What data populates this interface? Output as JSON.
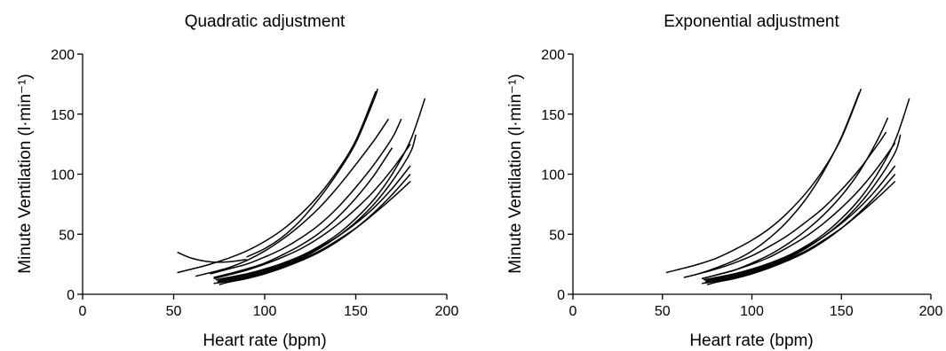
{
  "chart_data": [
    {
      "type": "line",
      "title": "Quadratic adjustment",
      "xlabel": "Heart rate (bpm)",
      "ylabel": "Minute  Ventilation  (l·min⁻¹)",
      "xlim": [
        0,
        200
      ],
      "ylim": [
        0,
        200
      ],
      "xticks": [
        0,
        50,
        100,
        150,
        200
      ],
      "yticks": [
        0,
        50,
        100,
        150,
        200
      ],
      "series": [
        {
          "x": [
            52,
            60,
            70,
            80,
            90
          ],
          "y": [
            35,
            30,
            27,
            27,
            29
          ]
        },
        {
          "x": [
            90,
            100,
            110,
            120,
            130,
            140,
            150,
            160,
            162
          ],
          "y": [
            31,
            38,
            48,
            62,
            80,
            101,
            126,
            162,
            171
          ]
        },
        {
          "x": [
            52,
            60,
            70,
            80,
            90,
            100,
            110,
            120,
            130,
            140,
            150,
            161
          ],
          "y": [
            18,
            21,
            25,
            30,
            36,
            44,
            54,
            67,
            83,
            103,
            128,
            169
          ]
        },
        {
          "x": [
            62,
            70,
            80,
            90,
            100,
            110,
            120,
            130,
            140,
            150,
            160,
            168
          ],
          "y": [
            15,
            18,
            22,
            28,
            36,
            46,
            58,
            72,
            89,
            108,
            128,
            146
          ]
        },
        {
          "x": [
            70,
            80,
            90,
            100,
            110,
            120,
            130,
            140,
            150,
            160,
            170,
            175
          ],
          "y": [
            17,
            21,
            25,
            31,
            38,
            47,
            58,
            72,
            89,
            108,
            130,
            146
          ]
        },
        {
          "x": [
            72,
            80,
            90,
            100,
            110,
            120,
            130,
            140,
            150,
            160,
            170
          ],
          "y": [
            14,
            17,
            21,
            26,
            33,
            41,
            51,
            64,
            80,
            99,
            122
          ]
        },
        {
          "x": [
            72,
            80,
            90,
            100,
            110,
            120,
            130,
            140,
            150,
            160,
            170,
            180
          ],
          "y": [
            13,
            16,
            20,
            25,
            31,
            38,
            47,
            58,
            71,
            86,
            104,
            125
          ]
        },
        {
          "x": [
            73,
            80,
            90,
            100,
            110,
            120,
            130,
            140,
            150,
            160,
            170,
            180,
            188
          ],
          "y": [
            12,
            14,
            17,
            21,
            26,
            32,
            40,
            50,
            63,
            79,
            100,
            128,
            163
          ]
        },
        {
          "x": [
            74,
            80,
            90,
            100,
            110,
            120,
            130,
            140,
            150,
            160,
            170,
            180,
            183
          ],
          "y": [
            10,
            12,
            15,
            19,
            24,
            30,
            38,
            48,
            60,
            75,
            94,
            118,
            133
          ]
        },
        {
          "x": [
            74,
            80,
            90,
            100,
            110,
            120,
            130,
            140,
            150,
            160,
            170,
            180
          ],
          "y": [
            11,
            13,
            16,
            20,
            25,
            31,
            39,
            48,
            59,
            72,
            88,
            107
          ]
        },
        {
          "x": [
            75,
            80,
            90,
            100,
            110,
            120,
            130,
            140,
            150,
            160,
            170,
            180
          ],
          "y": [
            8,
            10,
            13,
            17,
            22,
            28,
            35,
            44,
            55,
            68,
            83,
            100
          ]
        },
        {
          "x": [
            72,
            80,
            90,
            100,
            110,
            120,
            130,
            140,
            150,
            160,
            170,
            180
          ],
          "y": [
            9,
            11,
            14,
            18,
            23,
            29,
            36,
            45,
            55,
            67,
            80,
            94
          ]
        }
      ]
    },
    {
      "type": "line",
      "title": "Exponential adjustment",
      "xlabel": "Heart rate (bpm)",
      "ylabel": "Minute  Ventilation  (l·min⁻¹)",
      "xlim": [
        0,
        200
      ],
      "ylim": [
        0,
        200
      ],
      "xticks": [
        0,
        50,
        100,
        150,
        200
      ],
      "yticks": [
        0,
        50,
        100,
        150,
        200
      ],
      "series": [
        {
          "x": [
            52,
            60,
            70,
            80,
            90,
            100,
            110,
            120,
            130,
            140,
            150,
            161
          ],
          "y": [
            18,
            21,
            25,
            30,
            37,
            45,
            55,
            68,
            84,
            104,
            130,
            171
          ]
        },
        {
          "x": [
            62,
            70,
            80,
            90,
            100,
            110,
            120,
            130,
            140,
            150,
            160
          ],
          "y": [
            14,
            17,
            22,
            28,
            36,
            47,
            61,
            79,
            102,
            131,
            168
          ]
        },
        {
          "x": [
            70,
            80,
            90,
            100,
            110,
            120,
            130,
            140,
            150,
            160,
            170,
            175
          ],
          "y": [
            17,
            21,
            26,
            32,
            40,
            49,
            60,
            72,
            87,
            104,
            124,
            135
          ]
        },
        {
          "x": [
            72,
            80,
            90,
            100,
            110,
            120,
            130,
            140,
            150,
            160,
            170,
            176
          ],
          "y": [
            13,
            16,
            20,
            26,
            33,
            42,
            53,
            66,
            82,
            102,
            128,
            147
          ]
        },
        {
          "x": [
            72,
            80,
            90,
            100,
            110,
            120,
            130,
            140,
            150,
            160,
            170,
            180
          ],
          "y": [
            13,
            16,
            20,
            25,
            31,
            39,
            48,
            59,
            72,
            87,
            105,
            126
          ]
        },
        {
          "x": [
            73,
            80,
            90,
            100,
            110,
            120,
            130,
            140,
            150,
            160,
            170,
            180,
            188
          ],
          "y": [
            12,
            14,
            17,
            21,
            26,
            32,
            40,
            50,
            63,
            79,
            100,
            128,
            163
          ]
        },
        {
          "x": [
            74,
            80,
            90,
            100,
            110,
            120,
            130,
            140,
            150,
            160,
            170,
            180,
            183
          ],
          "y": [
            10,
            12,
            15,
            19,
            24,
            30,
            38,
            48,
            60,
            75,
            94,
            118,
            133
          ]
        },
        {
          "x": [
            74,
            80,
            90,
            100,
            110,
            120,
            130,
            140,
            150,
            160,
            170,
            180
          ],
          "y": [
            11,
            13,
            16,
            20,
            25,
            31,
            39,
            48,
            59,
            72,
            88,
            107
          ]
        },
        {
          "x": [
            75,
            80,
            90,
            100,
            110,
            120,
            130,
            140,
            150,
            160,
            170,
            180
          ],
          "y": [
            8,
            10,
            13,
            17,
            22,
            28,
            35,
            44,
            55,
            68,
            83,
            100
          ]
        },
        {
          "x": [
            72,
            80,
            90,
            100,
            110,
            120,
            130,
            140,
            150,
            160,
            170,
            180
          ],
          "y": [
            9,
            11,
            14,
            18,
            23,
            29,
            36,
            45,
            55,
            67,
            80,
            94
          ]
        }
      ]
    }
  ]
}
